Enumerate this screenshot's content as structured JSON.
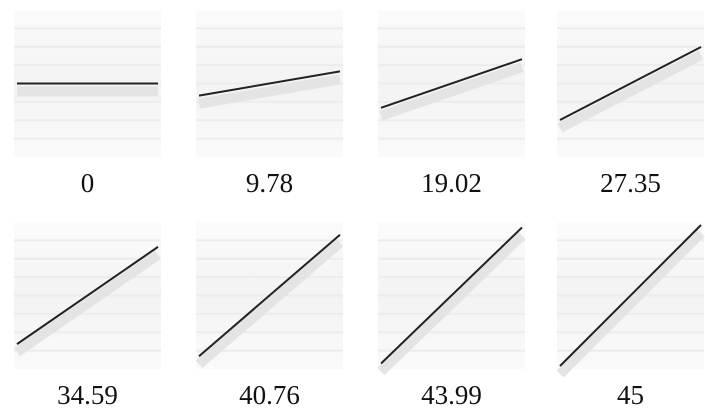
{
  "panels": [
    {
      "label": "0"
    },
    {
      "label": "9.78"
    },
    {
      "label": "19.02"
    },
    {
      "label": "27.35"
    },
    {
      "label": "34.59"
    },
    {
      "label": "40.76"
    },
    {
      "label": "43.99"
    },
    {
      "label": "45"
    }
  ]
}
